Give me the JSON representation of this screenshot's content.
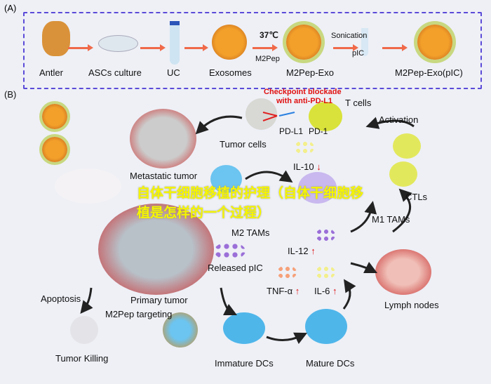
{
  "panel_a": {
    "label": "(A)",
    "steps": [
      "Antler",
      "ASCs culture",
      "UC",
      "Exosomes",
      "M2Pep-Exo",
      "M2Pep-Exo(pIC)"
    ],
    "temp": "37℃",
    "m2pep": "M2Pep",
    "sonication": "Sonication",
    "pic": "pIC"
  },
  "panel_b": {
    "label": "(B)",
    "checkpoint": "Checkpoint blockade",
    "checkpoint2": "with anti-PD-L1",
    "t_cells": "T cells",
    "pd_l1": "PD-L1",
    "pd_1": "PD-1",
    "tumor_cells": "Tumor cells",
    "activation": "Activation",
    "metastatic": "Metastatic tumor",
    "il10": "IL-10",
    "m2tams": "M2 TAMs",
    "m1tams": "M1 TAMs",
    "ctls": "CTLs",
    "released": "Released pIC",
    "il12": "IL-12",
    "primary": "Primary tumor",
    "apoptosis": "Apoptosis",
    "targeting": "M2Pep targeting",
    "tnf": "TNF-α",
    "il6": "IL-6",
    "lymph": "Lymph nodes",
    "killing": "Tumor Killing",
    "immature": "Immature DCs",
    "mature": "Mature DCs",
    "up": "↑",
    "down": "↓"
  },
  "watermark": "自体干细胞移植的护理（自体干细胞移植是怎样的一个过程）",
  "colors": {
    "arrow": "#f06a4a",
    "box": "#5b4bd8",
    "exo": "#e08a1a",
    "tumor": "#d22",
    "macro_blue": "#6cc4f0",
    "macro_purple": "#b9a3ea",
    "tcell": "#d9e23a",
    "dc": "#4fb6ea",
    "cytokine_yellow": "#f3ef8c",
    "cytokine_purple": "#9b6fd8",
    "cytokine_orange": "#f6a17a"
  }
}
